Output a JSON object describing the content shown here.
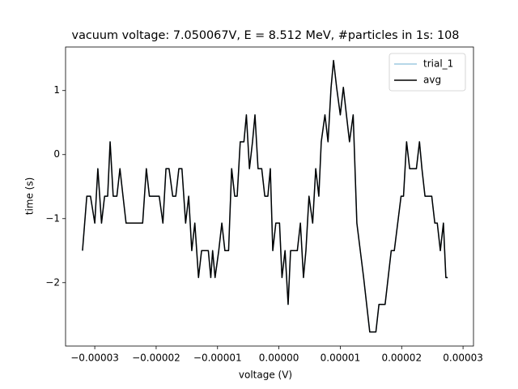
{
  "chart_data": {
    "type": "line",
    "title": "vacuum voltage: 7.050067V, E = 8.512 MeV, #particles in 1s: 108",
    "x_label": "voltage (V)",
    "y_label": "time (s)",
    "x": [
      -3.2e-05,
      -3.13e-05,
      -3.07e-05,
      -3e-05,
      -2.95e-05,
      -2.89e-05,
      -2.84e-05,
      -2.79e-05,
      -2.75e-05,
      -2.7e-05,
      -2.64e-05,
      -2.59e-05,
      -2.54e-05,
      -2.49e-05,
      -2.43e-05,
      -2.38e-05,
      -2.33e-05,
      -2.28e-05,
      -2.22e-05,
      -2.16e-05,
      -2.11e-05,
      -2.05e-05,
      -2e-05,
      -1.95e-05,
      -1.89e-05,
      -1.84e-05,
      -1.79e-05,
      -1.73e-05,
      -1.68e-05,
      -1.63e-05,
      -1.58e-05,
      -1.52e-05,
      -1.47e-05,
      -1.42e-05,
      -1.37e-05,
      -1.31e-05,
      -1.26e-05,
      -1.21e-05,
      -1.15e-05,
      -1.11e-05,
      -1.08e-05,
      -1.04e-05,
      -9.8e-06,
      -9.3e-06,
      -8.8e-06,
      -8.2e-06,
      -7.7e-06,
      -7.2e-06,
      -6.8e-06,
      -6.3e-06,
      -5.7e-06,
      -5.3e-06,
      -4.8e-06,
      -4.3e-06,
      -3.9e-06,
      -3.4e-06,
      -2.8e-06,
      -2.3e-06,
      -1.8e-06,
      -1.4e-06,
      -1e-06,
      -5e-07,
      1e-07,
      5e-07,
      1e-06,
      1.5e-06,
      1.9e-06,
      2.4e-06,
      3e-06,
      3.5e-06,
      4e-06,
      4.4e-06,
      4.9e-06,
      5.5e-06,
      6e-06,
      6.5e-06,
      6.9e-06,
      7.5e-06,
      8e-06,
      8.5e-06,
      8.9e-06,
      9.4e-06,
      1e-05,
      1.05e-05,
      1.1e-05,
      1.15e-05,
      1.21e-05,
      1.27e-05,
      1.38e-05,
      1.48e-05,
      1.58e-05,
      1.63e-05,
      1.73e-05,
      1.83e-05,
      1.88e-05,
      1.99e-05,
      2.03e-05,
      2.08e-05,
      2.13e-05,
      2.18e-05,
      2.24e-05,
      2.29e-05,
      2.33e-05,
      2.38e-05,
      2.43e-05,
      2.49e-05,
      2.54e-05,
      2.58e-05,
      2.63e-05,
      2.68e-05,
      2.72e-05,
      2.75e-05
    ],
    "series": [
      {
        "name": "trial_1",
        "color": "#9ecae1",
        "values": [
          -1.5,
          -0.65,
          -0.65,
          -1.07,
          -0.22,
          -1.07,
          -0.65,
          -0.65,
          0.2,
          -0.65,
          -0.65,
          -0.22,
          -0.65,
          -1.07,
          -1.07,
          -1.07,
          -1.07,
          -1.07,
          -1.07,
          -0.22,
          -0.65,
          -0.65,
          -0.65,
          -0.65,
          -1.07,
          -0.22,
          -0.22,
          -0.65,
          -0.65,
          -0.22,
          -0.22,
          -1.07,
          -0.65,
          -1.5,
          -1.07,
          -1.92,
          -1.5,
          -1.5,
          -1.5,
          -1.92,
          -1.5,
          -1.92,
          -1.5,
          -1.07,
          -1.5,
          -1.5,
          -0.22,
          -0.65,
          -0.65,
          0.2,
          0.2,
          0.62,
          -0.22,
          0.2,
          0.62,
          -0.22,
          -0.22,
          -0.65,
          -0.65,
          -0.22,
          -1.5,
          -1.07,
          -1.07,
          -1.92,
          -1.5,
          -2.34,
          -1.5,
          -1.5,
          -1.5,
          -1.07,
          -1.92,
          -1.5,
          -0.65,
          -1.07,
          -0.22,
          -0.65,
          0.2,
          0.62,
          0.2,
          1.05,
          1.47,
          1.05,
          0.62,
          1.05,
          0.62,
          0.2,
          0.62,
          -1.07,
          -1.92,
          -2.77,
          -2.77,
          -2.34,
          -2.34,
          -1.5,
          -1.5,
          -0.65,
          -0.65,
          0.2,
          -0.22,
          -0.22,
          -0.22,
          0.2,
          -0.22,
          -0.65,
          -0.65,
          -0.65,
          -1.07,
          -1.07,
          -1.5,
          -1.07,
          -1.92,
          -1.92
        ]
      },
      {
        "name": "avg",
        "color": "#000000",
        "values": [
          -1.5,
          -0.65,
          -0.65,
          -1.07,
          -0.22,
          -1.07,
          -0.65,
          -0.65,
          0.2,
          -0.65,
          -0.65,
          -0.22,
          -0.65,
          -1.07,
          -1.07,
          -1.07,
          -1.07,
          -1.07,
          -1.07,
          -0.22,
          -0.65,
          -0.65,
          -0.65,
          -0.65,
          -1.07,
          -0.22,
          -0.22,
          -0.65,
          -0.65,
          -0.22,
          -0.22,
          -1.07,
          -0.65,
          -1.5,
          -1.07,
          -1.92,
          -1.5,
          -1.5,
          -1.5,
          -1.92,
          -1.5,
          -1.92,
          -1.5,
          -1.07,
          -1.5,
          -1.5,
          -0.22,
          -0.65,
          -0.65,
          0.2,
          0.2,
          0.62,
          -0.22,
          0.2,
          0.62,
          -0.22,
          -0.22,
          -0.65,
          -0.65,
          -0.22,
          -1.5,
          -1.07,
          -1.07,
          -1.92,
          -1.5,
          -2.34,
          -1.5,
          -1.5,
          -1.5,
          -1.07,
          -1.92,
          -1.5,
          -0.65,
          -1.07,
          -0.22,
          -0.65,
          0.2,
          0.62,
          0.2,
          1.05,
          1.47,
          1.05,
          0.62,
          1.05,
          0.62,
          0.2,
          0.62,
          -1.07,
          -1.92,
          -2.77,
          -2.77,
          -2.34,
          -2.34,
          -1.5,
          -1.5,
          -0.65,
          -0.65,
          0.2,
          -0.22,
          -0.22,
          -0.22,
          0.2,
          -0.22,
          -0.65,
          -0.65,
          -0.65,
          -1.07,
          -1.07,
          -1.5,
          -1.07,
          -1.92,
          -1.92
        ]
      }
    ],
    "xlim": [
      -3.476e-05,
      3.17e-05
    ],
    "ylim": [
      -2.99,
      1.68
    ],
    "xticks": [
      {
        "value": -3e-05,
        "label": "−0.00003"
      },
      {
        "value": -2e-05,
        "label": "−0.00002"
      },
      {
        "value": -1e-05,
        "label": "−0.00001"
      },
      {
        "value": 0,
        "label": "0.00000"
      },
      {
        "value": 1e-05,
        "label": "0.00001"
      },
      {
        "value": 2e-05,
        "label": "0.00002"
      },
      {
        "value": 3e-05,
        "label": "0.00003"
      }
    ],
    "yticks": [
      {
        "value": -2,
        "label": "−2"
      },
      {
        "value": -1,
        "label": "−1"
      },
      0,
      1
    ],
    "legend": "upper right"
  }
}
